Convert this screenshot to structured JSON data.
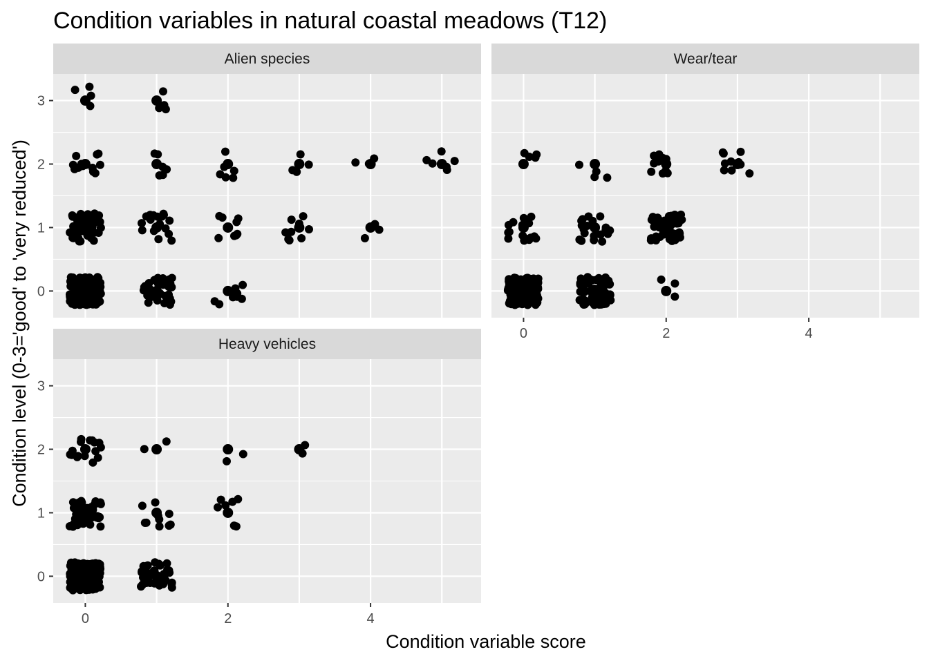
{
  "chart_data": {
    "type": "scatter",
    "title": "Condition variables in natural coastal meadows (T12)",
    "xlabel": "Condition variable score",
    "ylabel": "Condition level (0-3='good' to 'very reduced')",
    "xlim": [
      -0.45,
      5.55
    ],
    "ylim": [
      -0.42,
      3.42
    ],
    "x_ticks": [
      0,
      2,
      4
    ],
    "y_ticks": [
      0,
      1,
      2,
      3
    ],
    "jitter": 0.22,
    "point_color": "#000000",
    "panel_background": "#ebebeb",
    "strip_background": "#d9d9d9",
    "facets": [
      {
        "name": "Alien species",
        "clusters": [
          {
            "x": 0,
            "y": 3,
            "n": 4
          },
          {
            "x": 1,
            "y": 3,
            "n": 4
          },
          {
            "x": 0,
            "y": 2,
            "n": 12
          },
          {
            "x": 1,
            "y": 2,
            "n": 6
          },
          {
            "x": 2,
            "y": 2,
            "n": 6
          },
          {
            "x": 3,
            "y": 2,
            "n": 4
          },
          {
            "x": 4,
            "y": 2,
            "n": 3
          },
          {
            "x": 5,
            "y": 2,
            "n": 6
          },
          {
            "x": 0,
            "y": 1,
            "n": 60
          },
          {
            "x": 1,
            "y": 1,
            "n": 18
          },
          {
            "x": 2,
            "y": 1,
            "n": 8
          },
          {
            "x": 3,
            "y": 1,
            "n": 10
          },
          {
            "x": 4,
            "y": 1,
            "n": 4
          },
          {
            "x": 0,
            "y": 0,
            "n": 150
          },
          {
            "x": 1,
            "y": 0,
            "n": 40
          },
          {
            "x": 2,
            "y": 0,
            "n": 10
          }
        ]
      },
      {
        "name": "Wear/tear",
        "clusters": [
          {
            "x": 0,
            "y": 2,
            "n": 4
          },
          {
            "x": 1,
            "y": 2,
            "n": 4
          },
          {
            "x": 2,
            "y": 2,
            "n": 10
          },
          {
            "x": 3,
            "y": 2,
            "n": 10
          },
          {
            "x": 0,
            "y": 1,
            "n": 18
          },
          {
            "x": 1,
            "y": 1,
            "n": 22
          },
          {
            "x": 2,
            "y": 1,
            "n": 45
          },
          {
            "x": 0,
            "y": 0,
            "n": 160
          },
          {
            "x": 1,
            "y": 0,
            "n": 80
          },
          {
            "x": 2,
            "y": 0,
            "n": 3
          }
        ]
      },
      {
        "name": "Heavy vehicles",
        "clusters": [
          {
            "x": 0,
            "y": 2,
            "n": 16
          },
          {
            "x": 1,
            "y": 2,
            "n": 2
          },
          {
            "x": 2,
            "y": 2,
            "n": 2
          },
          {
            "x": 3,
            "y": 2,
            "n": 2
          },
          {
            "x": 0,
            "y": 1,
            "n": 55
          },
          {
            "x": 1,
            "y": 1,
            "n": 10
          },
          {
            "x": 2,
            "y": 1,
            "n": 7
          },
          {
            "x": 0,
            "y": 0,
            "n": 150
          },
          {
            "x": 1,
            "y": 0,
            "n": 45
          }
        ]
      }
    ]
  }
}
